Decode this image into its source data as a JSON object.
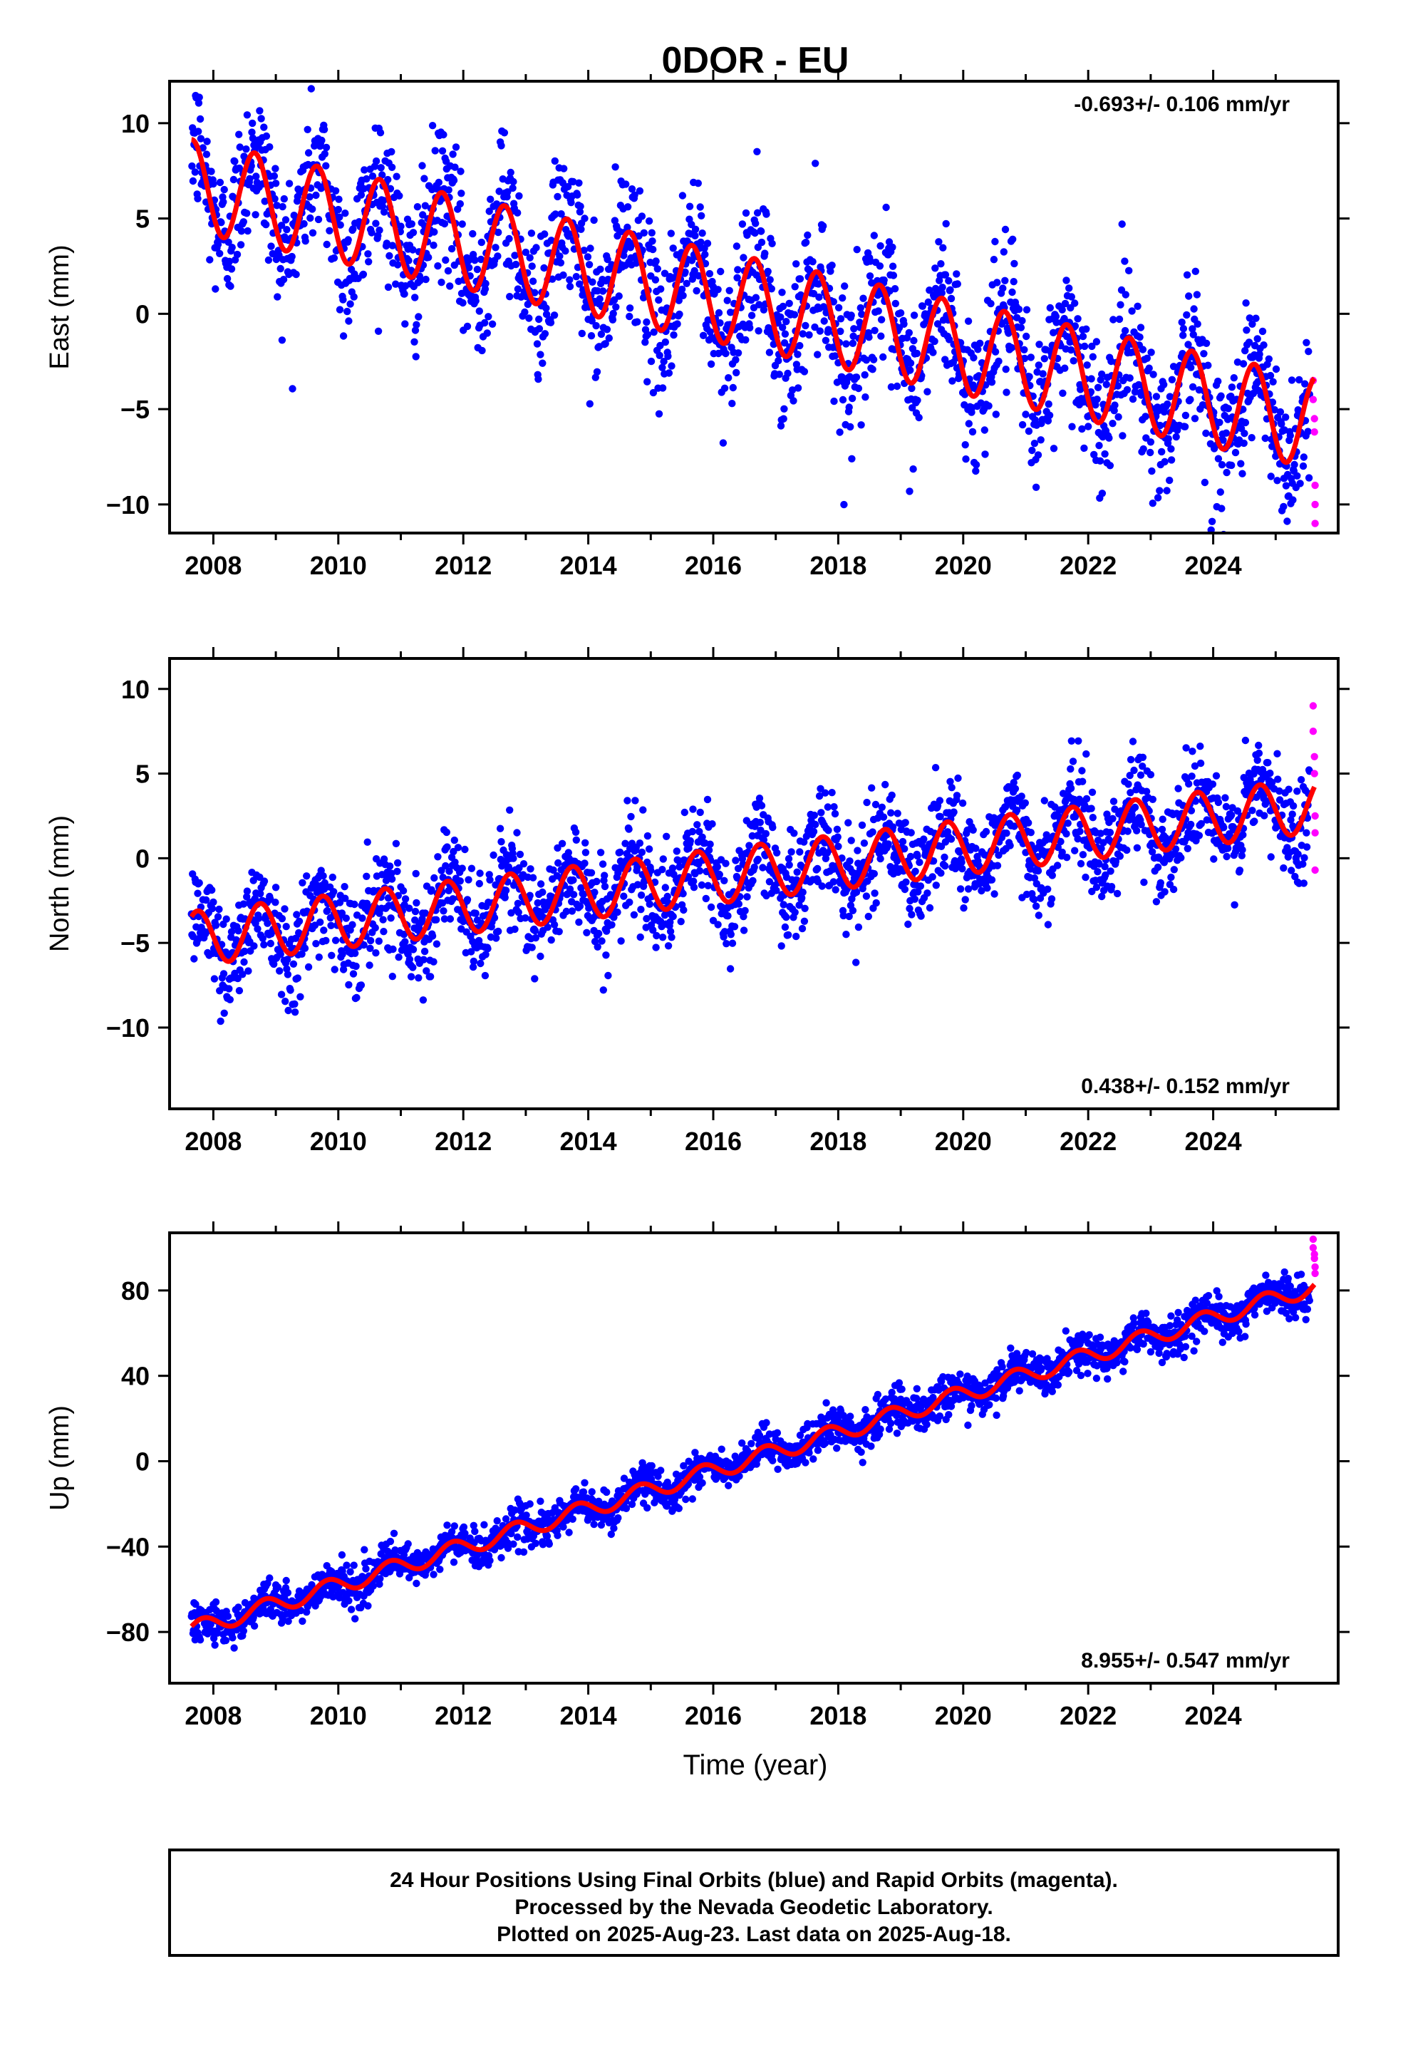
{
  "title": "0DOR - EU",
  "xlabel": "Time (year)",
  "footer": {
    "line1": "24 Hour Positions Using Final Orbits (blue) and Rapid Orbits (magenta).",
    "line2": "Processed by the Nevada Geodetic Laboratory.",
    "line3": "Plotted on 2025-Aug-23. Last data on 2025-Aug-18."
  },
  "colors": {
    "final": "#0000ff",
    "rapid": "#ff00ff",
    "model": "#ff0000",
    "frame": "#000000"
  },
  "chart_data": [
    {
      "type": "scatter",
      "panel": "east",
      "ylabel": "East (mm)",
      "rate_label": "-0.693+/- 0.106 mm/yr",
      "rate_position": "top-right",
      "xlim": [
        2007.3,
        2026.0
      ],
      "ylim": [
        -11.5,
        12.2
      ],
      "xticks": [
        2008,
        2010,
        2012,
        2014,
        2016,
        2018,
        2020,
        2022,
        2024
      ],
      "yticks": [
        -10,
        -5,
        0,
        5,
        10
      ],
      "series": [
        {
          "style": "blue dots",
          "x_range": [
            2007.65,
            2025.55
          ],
          "noise_mm": 1.9
        },
        {
          "style": "magenta dots",
          "x": [
            2025.6,
            2025.6,
            2025.62,
            2025.62,
            2025.63,
            2025.63,
            2025.63
          ],
          "y": [
            -3.5,
            -4.5,
            -5.5,
            -6.2,
            -9.0,
            -10.0,
            -11.0
          ]
        },
        {
          "style": "red line",
          "offset_at_2008": 6.5,
          "rate_mm_yr": -0.693,
          "annual_amp_mm": 2.4,
          "annual_phase": 0.41
        }
      ]
    },
    {
      "type": "scatter",
      "panel": "north",
      "ylabel": "North (mm)",
      "rate_label": "0.438+/- 0.152 mm/yr",
      "rate_position": "bottom-right",
      "xlim": [
        2007.3,
        2026.0
      ],
      "ylim": [
        -14.8,
        11.8
      ],
      "xticks": [
        2008,
        2010,
        2012,
        2014,
        2016,
        2018,
        2020,
        2022,
        2024
      ],
      "yticks": [
        -10,
        -5,
        0,
        5,
        10
      ],
      "series": [
        {
          "style": "blue dots",
          "x_range": [
            2007.65,
            2025.55
          ],
          "noise_mm": 1.5
        },
        {
          "style": "magenta dots",
          "x": [
            2025.6,
            2025.6,
            2025.62,
            2025.62,
            2025.63,
            2025.63,
            2025.63
          ],
          "y": [
            9.0,
            7.5,
            6.0,
            5.0,
            2.5,
            1.5,
            -0.7
          ]
        },
        {
          "style": "red line",
          "offset_at_2008": -4.6,
          "rate_mm_yr": 0.438,
          "annual_amp_mm": 1.6,
          "annual_phase": 0.5
        }
      ]
    },
    {
      "type": "scatter",
      "panel": "up",
      "ylabel": "Up (mm)",
      "rate_label": "8.955+/- 0.547 mm/yr",
      "rate_position": "bottom-right",
      "xlim": [
        2007.3,
        2026.0
      ],
      "ylim": [
        -104,
        107
      ],
      "xticks": [
        2008,
        2010,
        2012,
        2014,
        2016,
        2018,
        2020,
        2022,
        2024
      ],
      "yticks": [
        -80,
        -40,
        0,
        40,
        80
      ],
      "series": [
        {
          "style": "blue dots",
          "x_range": [
            2007.65,
            2025.55
          ],
          "noise_mm": 4.5
        },
        {
          "style": "magenta dots",
          "x": [
            2025.6,
            2025.6,
            2025.62,
            2025.62,
            2025.63,
            2025.63
          ],
          "y": [
            104,
            100,
            97,
            95,
            91,
            88
          ]
        },
        {
          "style": "red line",
          "offset_at_2008": -76.0,
          "rate_mm_yr": 8.955,
          "annual_amp_mm": 4.0,
          "annual_phase": 0.58
        }
      ]
    }
  ]
}
